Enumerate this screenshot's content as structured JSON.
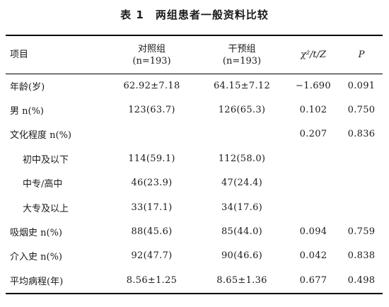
{
  "caption": "表 1　两组患者一般资料比较",
  "header": {
    "item": "项目",
    "control_name": "对照组",
    "control_n": "(n=193)",
    "intervention_name": "干预组",
    "intervention_n": "(n=193)",
    "stat": "χ²/t/Z",
    "p": "P"
  },
  "rows": [
    {
      "item": "年龄(岁)",
      "control": "62.92±7.18",
      "intervention": "64.15±7.12",
      "stat": "−1.690",
      "p": "0.091"
    },
    {
      "item": "男 n(%)",
      "control": "123(63.7)",
      "intervention": "126(65.3)",
      "stat": "0.102",
      "p": "0.750"
    },
    {
      "item": "文化程度 n(%)",
      "control": "",
      "intervention": "",
      "stat": "0.207",
      "p": "0.836"
    },
    {
      "item": "初中及以下",
      "control": "114(59.1)",
      "intervention": "112(58.0)",
      "stat": "",
      "p": ""
    },
    {
      "item": "中专/高中",
      "control": "46(23.9)",
      "intervention": "47(24.4)",
      "stat": "",
      "p": ""
    },
    {
      "item": "大专及以上",
      "control": "33(17.1)",
      "intervention": "34(17.6)",
      "stat": "",
      "p": ""
    },
    {
      "item": "吸烟史 n(%)",
      "control": "88(45.6)",
      "intervention": "85(44.0)",
      "stat": "0.094",
      "p": "0.759"
    },
    {
      "item": "介入史 n(%)",
      "control": "92(47.7)",
      "intervention": "90(46.6)",
      "stat": "0.042",
      "p": "0.838"
    },
    {
      "item": "平均病程(年)",
      "control": "8.56±1.25",
      "intervention": "8.65±1.36",
      "stat": "0.677",
      "p": "0.498"
    }
  ]
}
